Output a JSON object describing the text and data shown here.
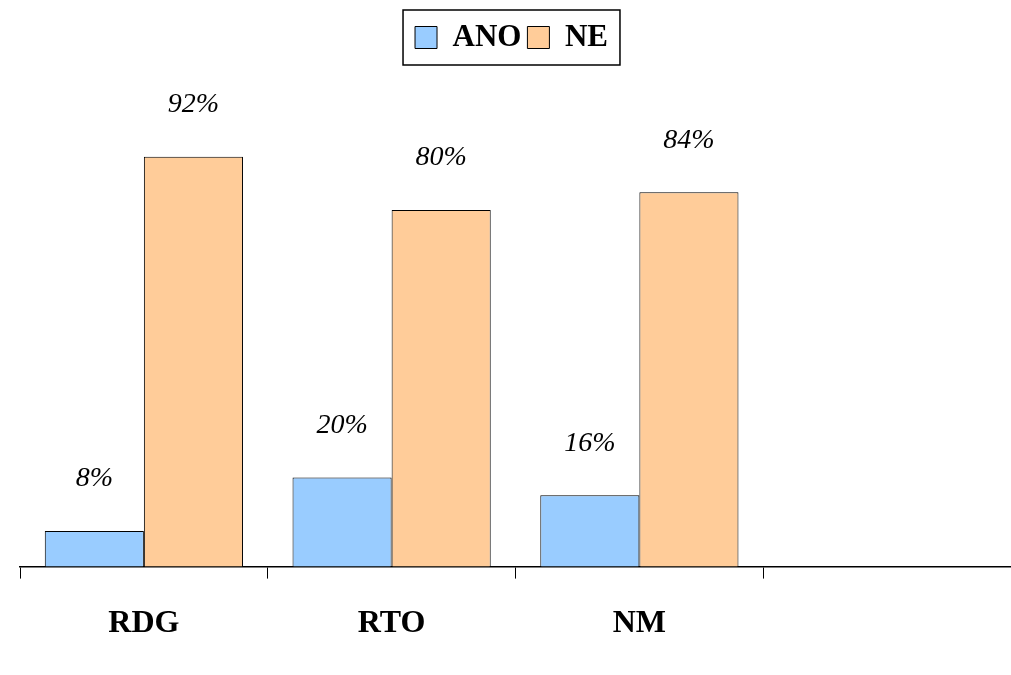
{
  "chart_data": {
    "type": "bar",
    "categories": [
      "RDG",
      "RTO",
      "NM",
      null
    ],
    "series": [
      {
        "name": "ANO",
        "color": "#99ccff",
        "values": [
          8,
          20,
          16,
          null
        ],
        "value_labels": [
          "8%",
          "20%",
          "16%",
          null
        ]
      },
      {
        "name": "NE",
        "color": "#ffcc99",
        "values": [
          92,
          80,
          84,
          null
        ],
        "value_labels": [
          "92%",
          "80%",
          "84%",
          null
        ]
      }
    ],
    "relative": false,
    "legend": "top",
    "grid": false
  }
}
